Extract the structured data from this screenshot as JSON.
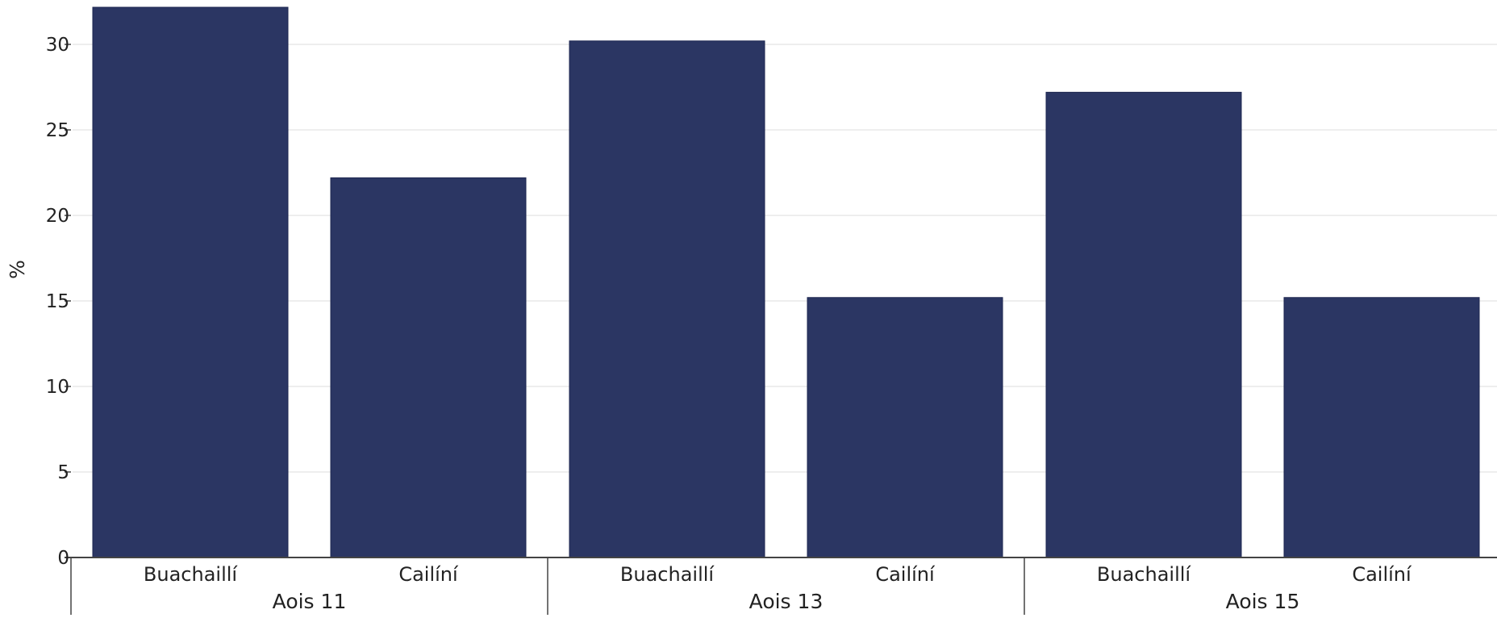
{
  "chart_data": {
    "type": "bar",
    "title": "",
    "xlabel": "",
    "ylabel": "%",
    "ylim": [
      0,
      32
    ],
    "yticks": [
      0,
      5,
      10,
      15,
      20,
      25,
      30
    ],
    "grid": "horizontal",
    "bar_color": "#2b3663",
    "groups": [
      {
        "label": "Aois 11",
        "categories": [
          "Buachaillí",
          "Cailíní"
        ],
        "values": [
          32.3,
          22.2
        ]
      },
      {
        "label": "Aois 13",
        "categories": [
          "Buachaillí",
          "Cailíní"
        ],
        "values": [
          30.2,
          15.2
        ]
      },
      {
        "label": "Aois 15",
        "categories": [
          "Buachaillí",
          "Cailíní"
        ],
        "values": [
          27.2,
          15.2
        ]
      }
    ]
  }
}
